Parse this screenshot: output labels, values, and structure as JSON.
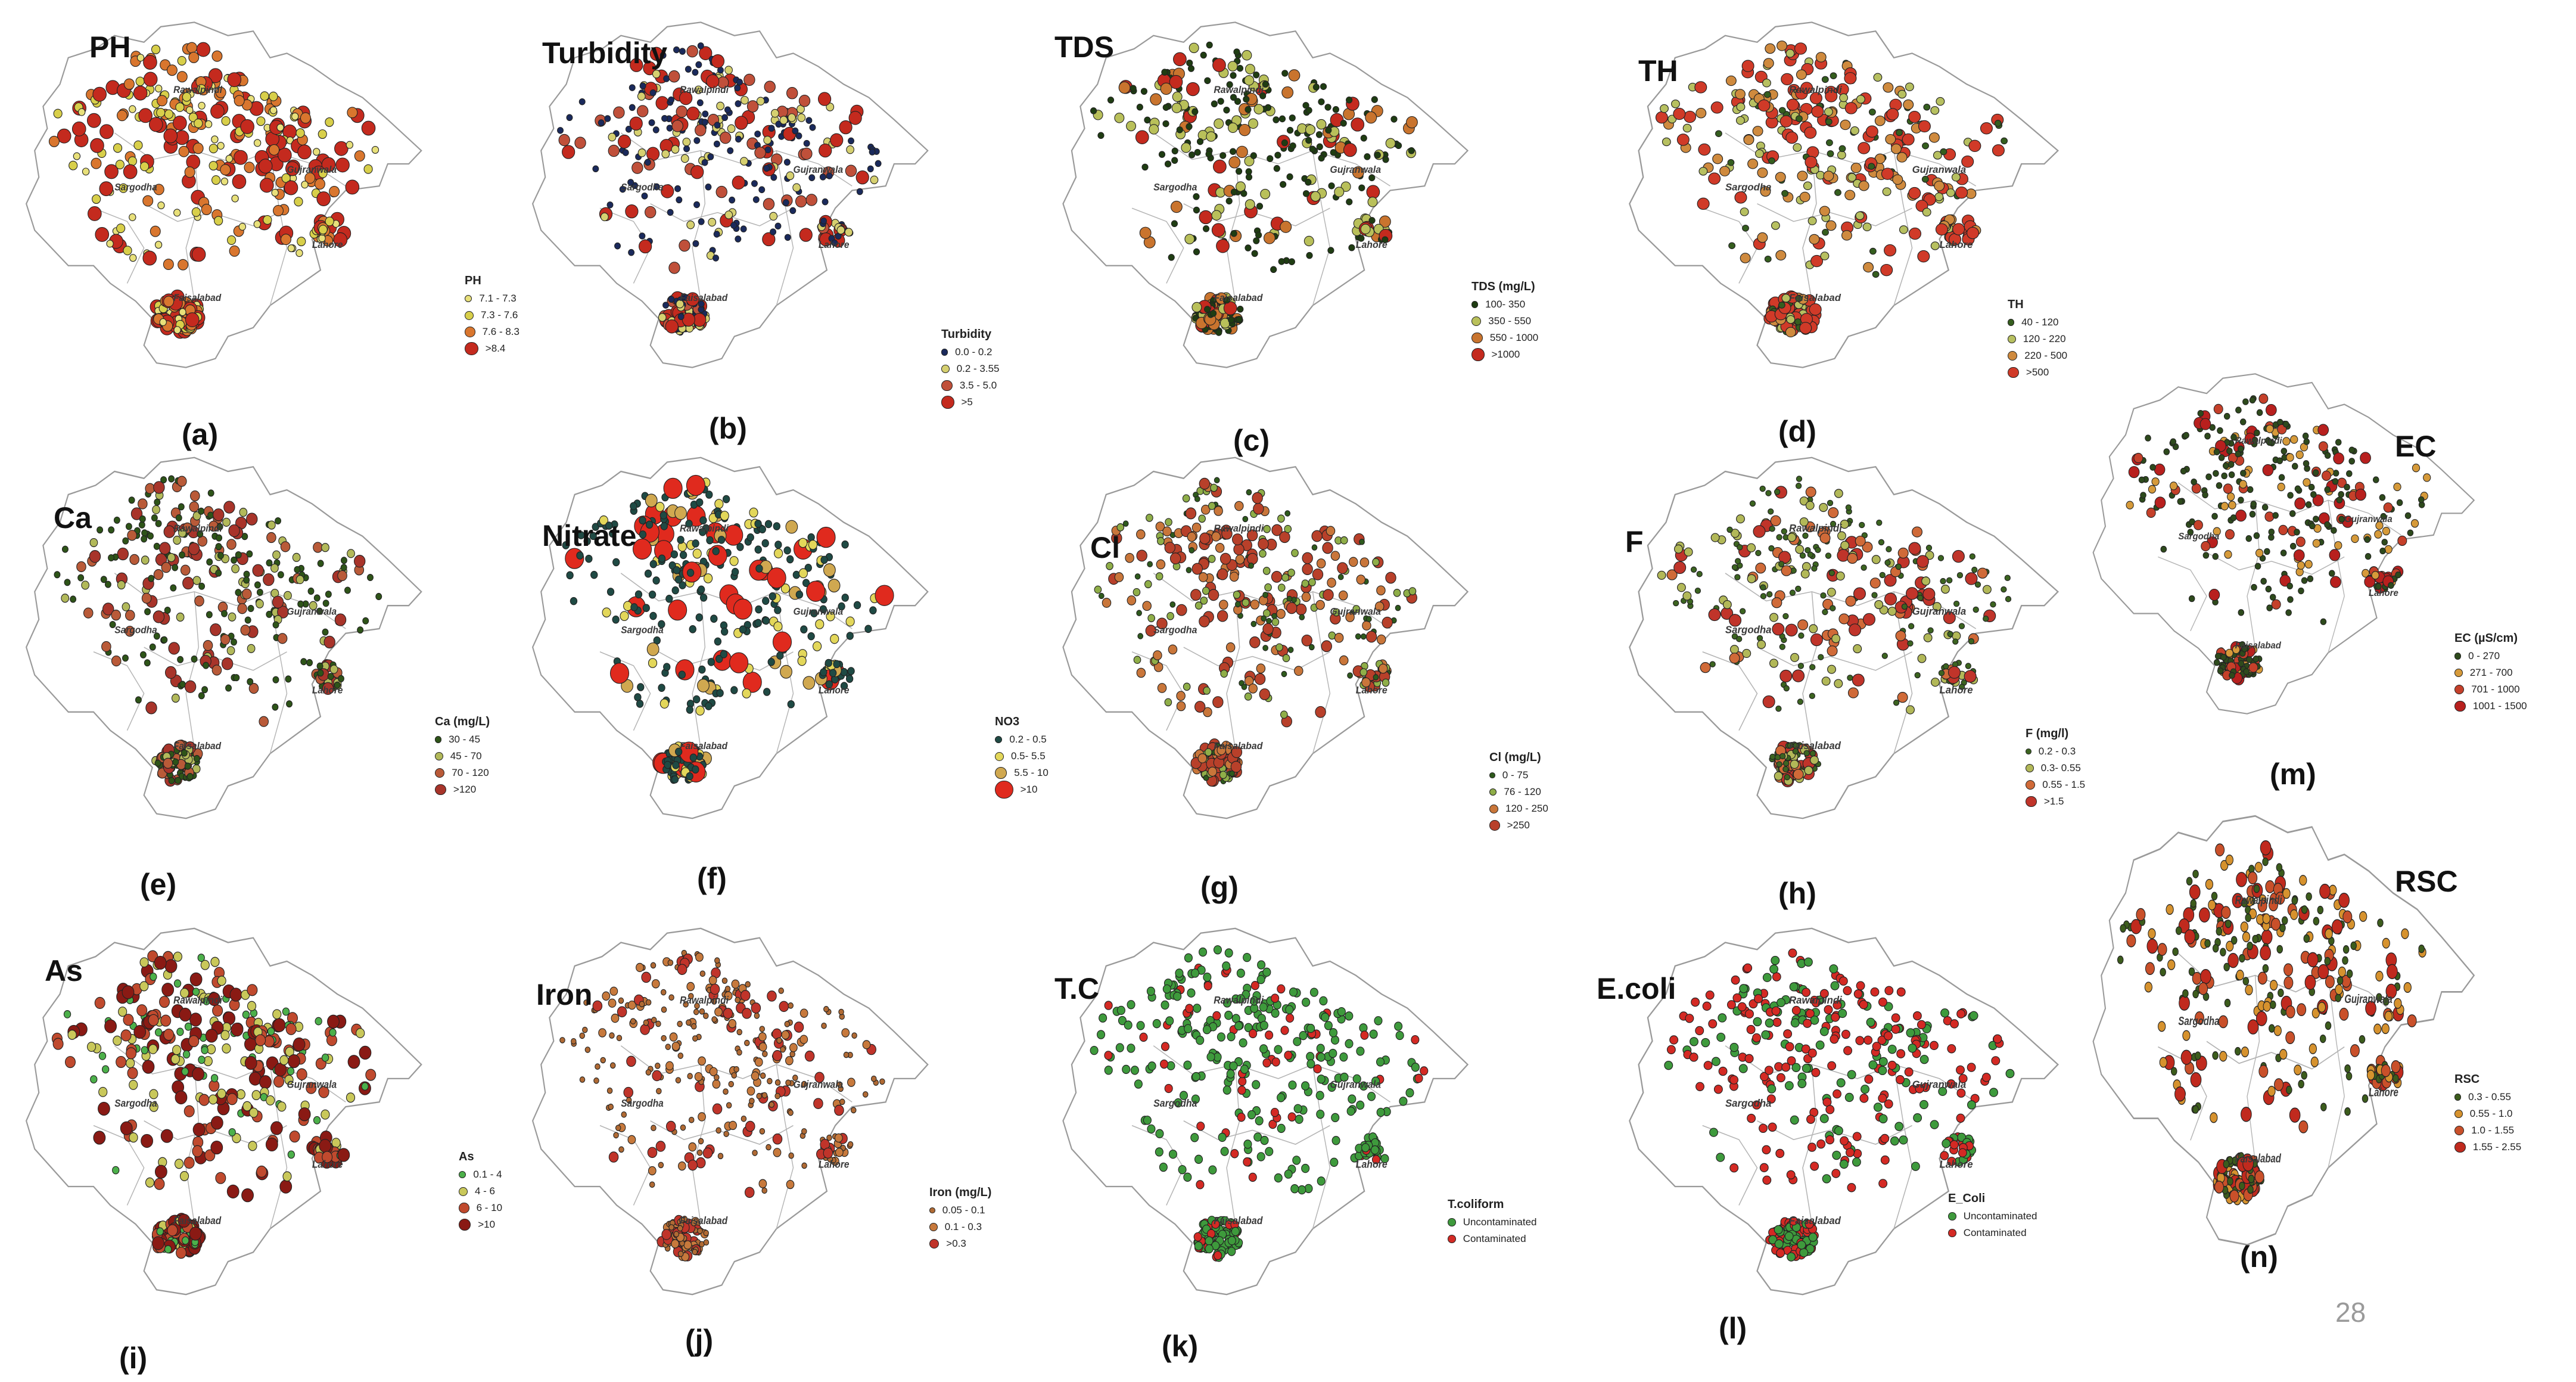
{
  "page_number": "28",
  "cities": [
    "Rawalpindi",
    "Sargodha",
    "Gujranwala",
    "Lahore",
    "Faisalabad"
  ],
  "panels": [
    {
      "id": "a",
      "title": "PH",
      "label": "(a)",
      "legend_title": "PH",
      "legend": [
        "7.1 - 7.3",
        "7.3 - 7.6",
        "7.6 - 8.3",
        ">8.4"
      ],
      "colors": [
        "#e8e07a",
        "#d8cf4a",
        "#d9762e",
        "#c42a1e"
      ]
    },
    {
      "id": "b",
      "title": "Turbidity",
      "label": "(b)",
      "legend_title": "Turbidity",
      "legend": [
        "0.0 - 0.2",
        "0.2 - 3.55",
        "3.5 - 5.0",
        ">5"
      ],
      "colors": [
        "#1a2a5c",
        "#d6d070",
        "#c0503a",
        "#c42a1e"
      ]
    },
    {
      "id": "c",
      "title": "TDS",
      "label": "(c)",
      "legend_title": "TDS (mg/L)",
      "legend": [
        "100- 350",
        "350 - 550",
        "550 - 1000",
        ">1000"
      ],
      "colors": [
        "#1f3d12",
        "#b9c05a",
        "#c9742e",
        "#c42a1e"
      ]
    },
    {
      "id": "d",
      "title": "TH",
      "label": "(d)",
      "legend_title": "TH",
      "legend": [
        "40 - 120",
        "120 - 220",
        "220 - 500",
        ">500"
      ],
      "colors": [
        "#355e1e",
        "#b7c060",
        "#cf8a3e",
        "#d03a28"
      ]
    },
    {
      "id": "e",
      "title": "Ca",
      "label": "(e)",
      "legend_title": "Ca (mg/L)",
      "legend": [
        "30 - 45",
        "45 - 70",
        "70 - 120",
        ">120"
      ],
      "colors": [
        "#2e5418",
        "#b2b95a",
        "#b95a38",
        "#a8342a"
      ]
    },
    {
      "id": "f",
      "title": "Nitrate",
      "label": "(f)",
      "legend_title": "NO3",
      "legend": [
        "0.2 - 0.5",
        "0.5- 5.5",
        "5.5 - 10",
        ">10"
      ],
      "colors": [
        "#1f4a44",
        "#e3d75a",
        "#d0a850",
        "#e02a1e"
      ]
    },
    {
      "id": "g",
      "title": "Cl",
      "label": "(g)",
      "legend_title": "Cl (mg/L)",
      "legend": [
        "0 - 75",
        "76 - 120",
        "120 - 250",
        ">250"
      ],
      "colors": [
        "#2e5a1c",
        "#8fae48",
        "#c9763a",
        "#b8402a"
      ]
    },
    {
      "id": "h",
      "title": "F",
      "label": "(h)",
      "legend_title": "F (mg/l)",
      "legend": [
        "0.2 - 0.3",
        "0.3- 0.55",
        "0.55 - 1.5",
        ">1.5"
      ],
      "colors": [
        "#3c6420",
        "#b2b858",
        "#d06a38",
        "#c0342a"
      ]
    },
    {
      "id": "m",
      "title": "EC",
      "label": "(m)",
      "legend_title": "EC (µS/cm)",
      "legend": [
        "0 - 270",
        "271 - 700",
        "701 - 1000",
        "1001 - 1500"
      ],
      "colors": [
        "#2e4a1c",
        "#d69a3a",
        "#c5402a",
        "#b8201e"
      ]
    },
    {
      "id": "i",
      "title": "As",
      "label": "(i)",
      "legend_title": "As",
      "legend": [
        "0.1 - 4",
        "4 - 6",
        "6 - 10",
        ">10"
      ],
      "colors": [
        "#4cb04a",
        "#c9c85a",
        "#c04a2e",
        "#8a1a14"
      ]
    },
    {
      "id": "j",
      "title": "Iron",
      "label": "(j)",
      "legend_title": "Iron (mg/L)",
      "legend": [
        "0.05 - 0.1",
        "0.1 - 0.3",
        ">0.3"
      ],
      "colors": [
        "#b06a34",
        "#c7793c",
        "#c0342a"
      ]
    },
    {
      "id": "k",
      "title": "T.C",
      "label": "(k)",
      "legend_title": "T.coliform",
      "legend": [
        "Uncontaminated",
        "Contaminated"
      ],
      "colors": [
        "#3e9a3c",
        "#d42a24"
      ]
    },
    {
      "id": "l",
      "title": "E.coli",
      "label": "(l)",
      "legend_title": "E_Coli",
      "legend": [
        "Uncontaminated",
        "Contaminated"
      ],
      "colors": [
        "#3e9a3c",
        "#d42a24"
      ]
    },
    {
      "id": "n",
      "title": "RSC",
      "label": "(n)",
      "legend_title": "RSC",
      "legend": [
        "0.3 - 0.55",
        "0.55 - 1.0",
        "1.0 - 1.55",
        "1.55 - 2.55"
      ],
      "colors": [
        "#3c5c1c",
        "#d6922e",
        "#c9502a",
        "#c02a1e"
      ]
    }
  ]
}
